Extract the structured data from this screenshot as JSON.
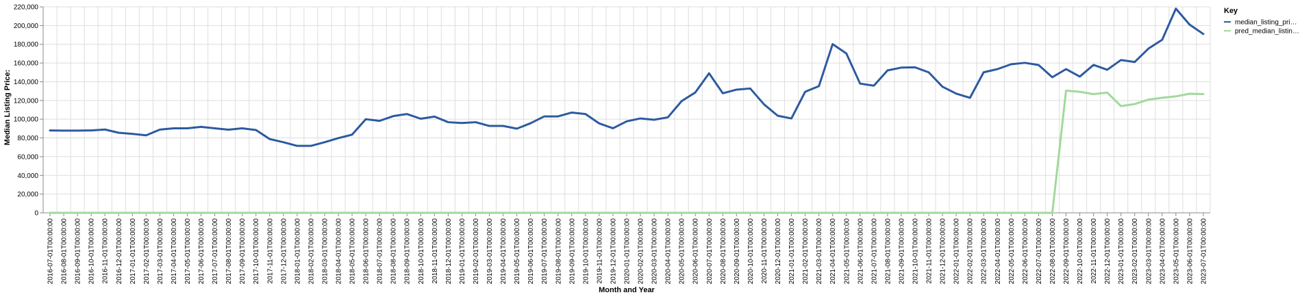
{
  "chart_data": {
    "type": "line",
    "xlabel": "Month and Year",
    "ylabel": "Median Listing Price:",
    "ylim": [
      0,
      220000
    ],
    "y_ticks": [
      "0",
      "20,000",
      "40,000",
      "60,000",
      "80,000",
      "100,000",
      "120,000",
      "140,000",
      "160,000",
      "180,000",
      "200,000",
      "220,000"
    ],
    "grid": true,
    "legend_position": "right",
    "legend_title": "Key",
    "categories": [
      "2016-07-01T00:00:00",
      "2016-08-01T00:00:00",
      "2016-09-01T00:00:00",
      "2016-10-01T00:00:00",
      "2016-11-01T00:00:00",
      "2016-12-01T00:00:00",
      "2017-01-01T00:00:00",
      "2017-02-01T00:00:00",
      "2017-03-01T00:00:00",
      "2017-04-01T00:00:00",
      "2017-05-01T00:00:00",
      "2017-06-01T00:00:00",
      "2017-07-01T00:00:00",
      "2017-08-01T00:00:00",
      "2017-09-01T00:00:00",
      "2017-10-01T00:00:00",
      "2017-11-01T00:00:00",
      "2017-12-01T00:00:00",
      "2018-01-01T00:00:00",
      "2018-02-01T00:00:00",
      "2018-03-01T00:00:00",
      "2018-04-01T00:00:00",
      "2018-05-01T00:00:00",
      "2018-06-01T00:00:00",
      "2018-07-01T00:00:00",
      "2018-08-01T00:00:00",
      "2018-09-01T00:00:00",
      "2018-10-01T00:00:00",
      "2018-11-01T00:00:00",
      "2018-12-01T00:00:00",
      "2019-01-01T00:00:00",
      "2019-02-01T00:00:00",
      "2019-03-01T00:00:00",
      "2019-04-01T00:00:00",
      "2019-05-01T00:00:00",
      "2019-06-01T00:00:00",
      "2019-07-01T00:00:00",
      "2019-08-01T00:00:00",
      "2019-09-01T00:00:00",
      "2019-10-01T00:00:00",
      "2019-11-01T00:00:00",
      "2019-12-01T00:00:00",
      "2020-01-01T00:00:00",
      "2020-02-01T00:00:00",
      "2020-03-01T00:00:00",
      "2020-04-01T00:00:00",
      "2020-05-01T00:00:00",
      "2020-06-01T00:00:00",
      "2020-07-01T00:00:00",
      "2020-08-01T00:00:00",
      "2020-09-01T00:00:00",
      "2020-10-01T00:00:00",
      "2020-11-01T00:00:00",
      "2020-12-01T00:00:00",
      "2021-01-01T00:00:00",
      "2021-02-01T00:00:00",
      "2021-03-01T00:00:00",
      "2021-04-01T00:00:00",
      "2021-05-01T00:00:00",
      "2021-06-01T00:00:00",
      "2021-07-01T00:00:00",
      "2021-08-01T00:00:00",
      "2021-09-01T00:00:00",
      "2021-10-01T00:00:00",
      "2021-11-01T00:00:00",
      "2021-12-01T00:00:00",
      "2022-01-01T00:00:00",
      "2022-02-01T00:00:00",
      "2022-03-01T00:00:00",
      "2022-04-01T00:00:00",
      "2022-05-01T00:00:00",
      "2022-06-01T00:00:00",
      "2022-07-01T00:00:00",
      "2022-08-01T00:00:00",
      "2022-09-01T00:00:00",
      "2022-10-01T00:00:00",
      "2022-11-01T00:00:00",
      "2022-12-01T00:00:00",
      "2023-01-01T00:00:00",
      "2023-02-01T00:00:00",
      "2023-03-01T00:00:00",
      "2023-04-01T00:00:00",
      "2023-05-01T00:00:00",
      "2023-06-01T00:00:00",
      "2023-07-01T00:00:00"
    ],
    "series": [
      {
        "name": "median_listing_pri…",
        "color": "#2c5aa0",
        "values": [
          88000,
          87800,
          87800,
          88000,
          89000,
          85500,
          84300,
          82800,
          88900,
          90300,
          90300,
          91800,
          90300,
          88800,
          90300,
          88400,
          78800,
          75400,
          71500,
          71500,
          75400,
          79800,
          83500,
          100000,
          98200,
          103300,
          105500,
          100500,
          102800,
          96800,
          95900,
          96800,
          92800,
          92800,
          89900,
          95700,
          103000,
          103000,
          107100,
          105500,
          95500,
          90300,
          97700,
          100800,
          99400,
          102000,
          119300,
          128600,
          149000,
          127700,
          131600,
          132800,
          115900,
          103700,
          100800,
          129300,
          135300,
          180200,
          170200,
          138000,
          135800,
          152100,
          155100,
          155400,
          150000,
          134700,
          127300,
          122800,
          150100,
          153500,
          158700,
          160200,
          157900,
          144800,
          153500,
          145500,
          158000,
          152800,
          163200,
          161100,
          175400,
          184800,
          218100,
          201000,
          191000
        ]
      },
      {
        "name": "pred_median_listin…",
        "color": "#a1d99b",
        "values": [
          0,
          0,
          0,
          0,
          0,
          0,
          0,
          0,
          0,
          0,
          0,
          0,
          0,
          0,
          0,
          0,
          0,
          0,
          0,
          0,
          0,
          0,
          0,
          0,
          0,
          0,
          0,
          0,
          0,
          0,
          0,
          0,
          0,
          0,
          0,
          0,
          0,
          0,
          0,
          0,
          0,
          0,
          0,
          0,
          0,
          0,
          0,
          0,
          0,
          0,
          0,
          0,
          0,
          0,
          0,
          0,
          0,
          0,
          0,
          0,
          0,
          0,
          0,
          0,
          0,
          0,
          0,
          0,
          0,
          0,
          0,
          0,
          0,
          0,
          130500,
          129300,
          126800,
          128400,
          114000,
          116200,
          120900,
          122900,
          124400,
          127200,
          126800
        ]
      }
    ]
  }
}
